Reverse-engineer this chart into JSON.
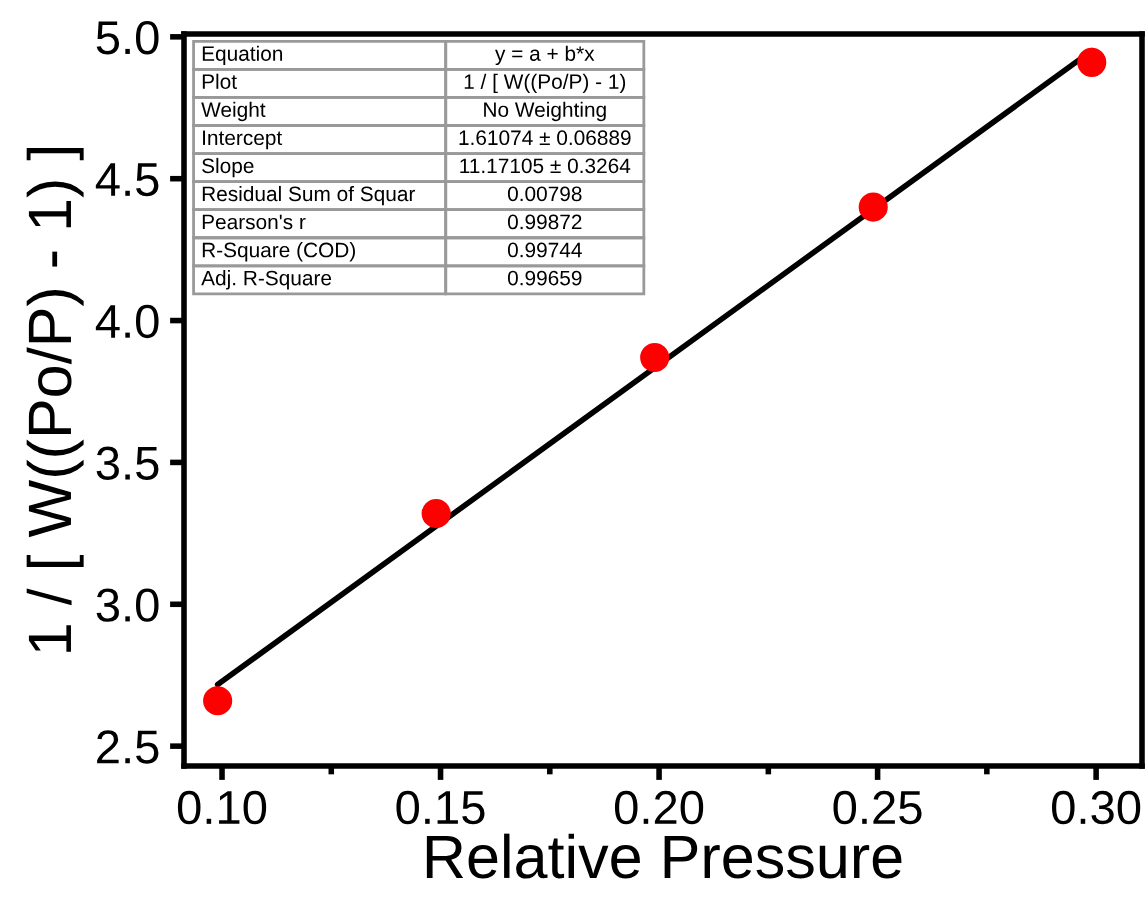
{
  "chart_data": {
    "type": "scatter",
    "xlabel": "Relative Pressure",
    "ylabel": "1 / [ W((Po/P) - 1) ]",
    "x": [
      0.099,
      0.149,
      0.199,
      0.249,
      0.299
    ],
    "series": [
      {
        "color": "#ff0000",
        "marker": "circle",
        "values": [
          2.66,
          3.32,
          3.87,
          4.4,
          4.91
        ]
      },
      {
        "type": "line",
        "color": "#000000",
        "marker": "none",
        "line_style": "solid",
        "x": [
          0.099,
          0.299
        ],
        "values": [
          2.717,
          4.951
        ]
      }
    ],
    "xlim": [
      0.0913,
      0.3105
    ],
    "ylim": [
      2.43,
      5.01
    ],
    "xticks": [
      {
        "value": 0.1,
        "label": "0.10"
      },
      {
        "value": 0.125,
        "label": null
      },
      0.15,
      {
        "value": 0.175,
        "label": null
      },
      {
        "value": 0.2,
        "label": "0.20"
      },
      {
        "value": 0.225,
        "label": null
      },
      0.25,
      {
        "value": 0.275,
        "label": null
      },
      {
        "value": 0.3,
        "label": "0.30"
      }
    ],
    "yticks": [
      2.5,
      {
        "value": 3,
        "label": "3.0"
      },
      3.5,
      {
        "value": 4,
        "label": "4.0"
      },
      4.5,
      {
        "value": 5,
        "label": "5.0"
      }
    ],
    "grid": false,
    "legend": false,
    "annotations": [
      "Equation",
      "y = a + b*x",
      "Plot",
      "1 / [ W((Po/P) - 1)",
      "Weight",
      "No Weighting",
      "Intercept",
      "1.61074 ± 0.06889",
      "Slope",
      "11.17105 ± 0.3264",
      "Residual Sum of Squar",
      "0.00798",
      "Pearson's r",
      "0.99872",
      "R-Square (COD)",
      "0.99744",
      "Adj. R-Square",
      "0.99659"
    ]
  }
}
